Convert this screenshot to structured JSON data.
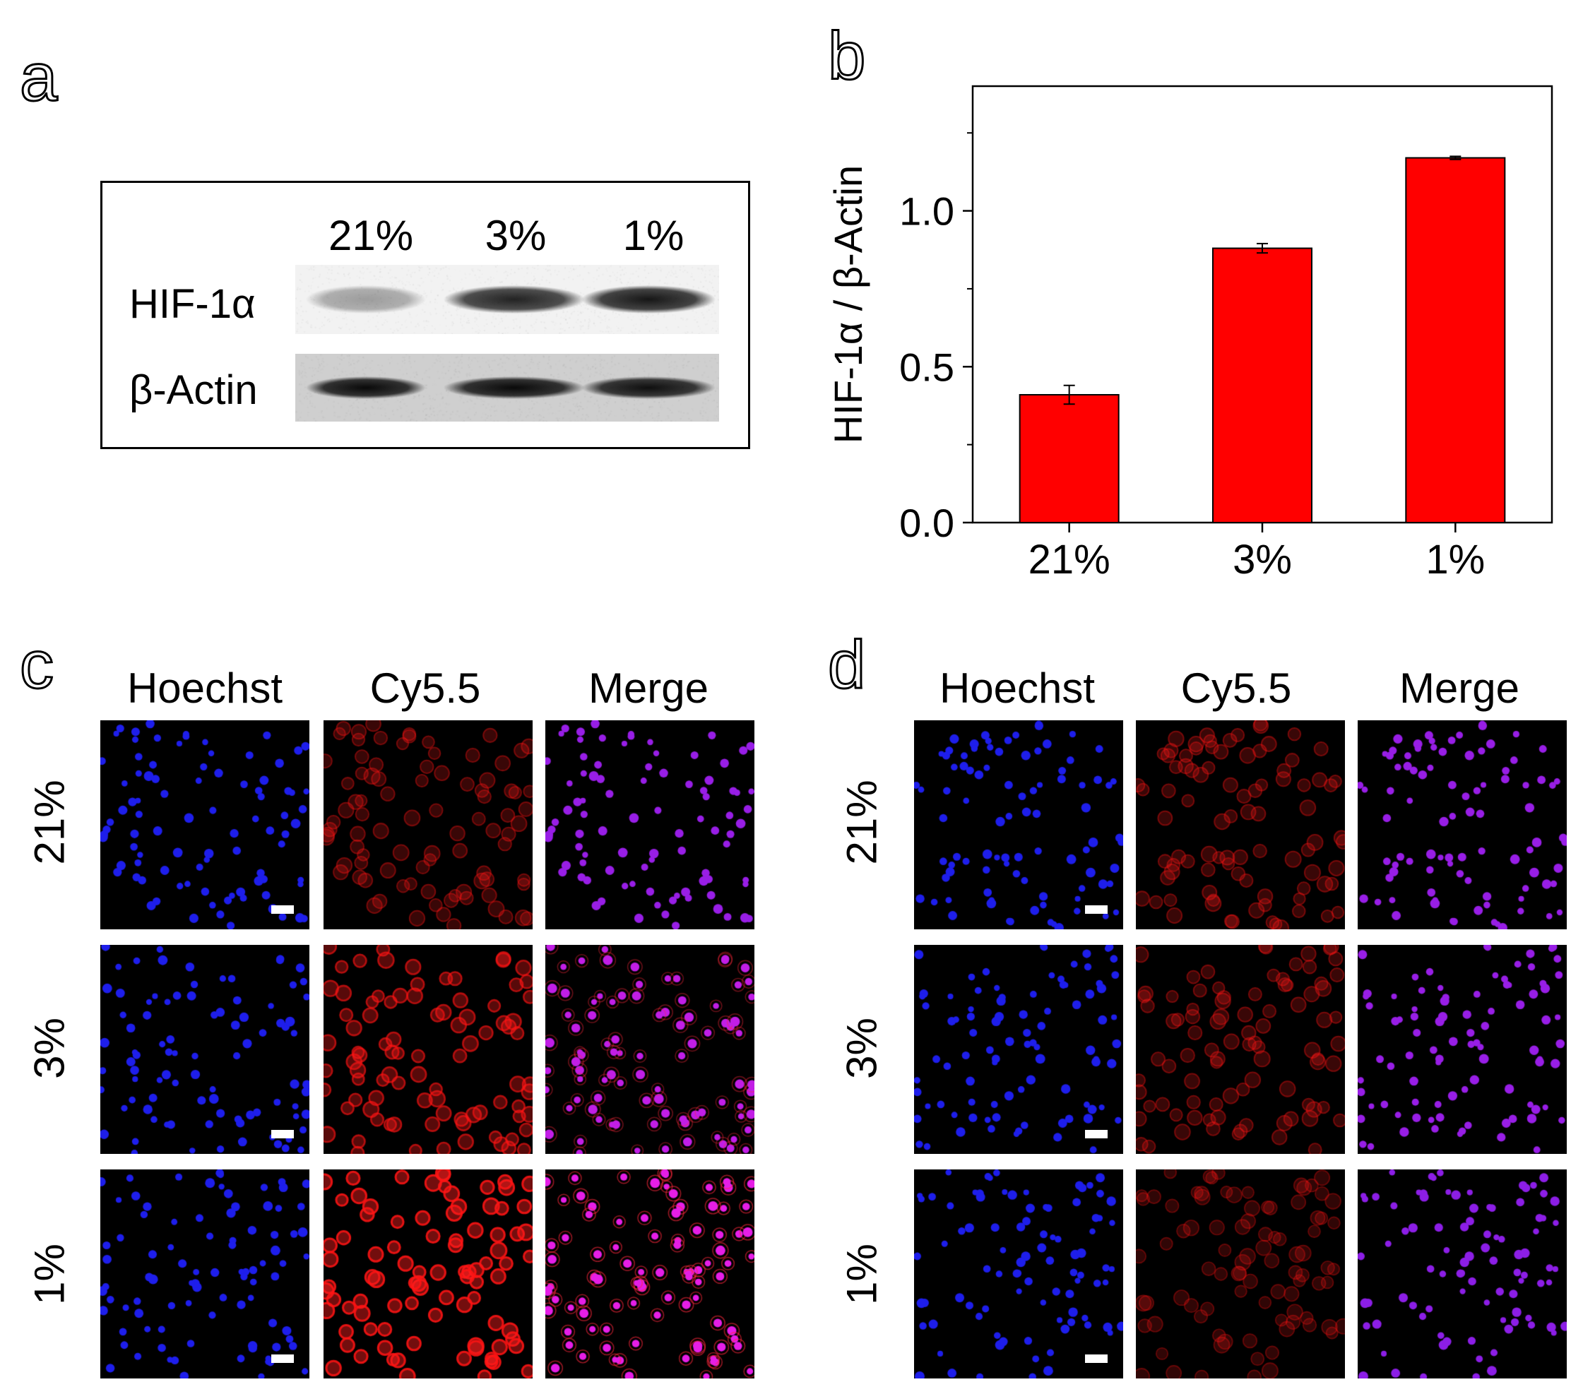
{
  "panels": {
    "a": "a",
    "b": "b",
    "c": "c",
    "d": "d"
  },
  "blot": {
    "lanes": [
      "21%",
      "3%",
      "1%"
    ],
    "rows": [
      "HIF-1α",
      "β-Actin"
    ],
    "hif_intensity": [
      0.35,
      0.85,
      0.9
    ],
    "actin_intensity": [
      0.95,
      0.95,
      0.92
    ]
  },
  "chart_data": {
    "type": "bar",
    "categories": [
      "21%",
      "3%",
      "1%"
    ],
    "values": [
      0.41,
      0.88,
      1.17
    ],
    "errors": [
      0.03,
      0.015,
      0.005
    ],
    "ylabel": "HIF-1α / β-Actin",
    "xlabel": "",
    "ylim": [
      0,
      1.4
    ],
    "yticks": [
      "0.0",
      "0.5",
      "1.0"
    ],
    "bar_color": "#ff0000"
  },
  "micro": {
    "columns": [
      "Hoechst",
      "Cy5.5",
      "Merge"
    ],
    "rows": [
      "21%",
      "3%",
      "1%"
    ],
    "c_red_intensity": [
      0.35,
      0.7,
      1.0
    ],
    "d_red_intensity": [
      0.35,
      0.35,
      0.25
    ]
  }
}
